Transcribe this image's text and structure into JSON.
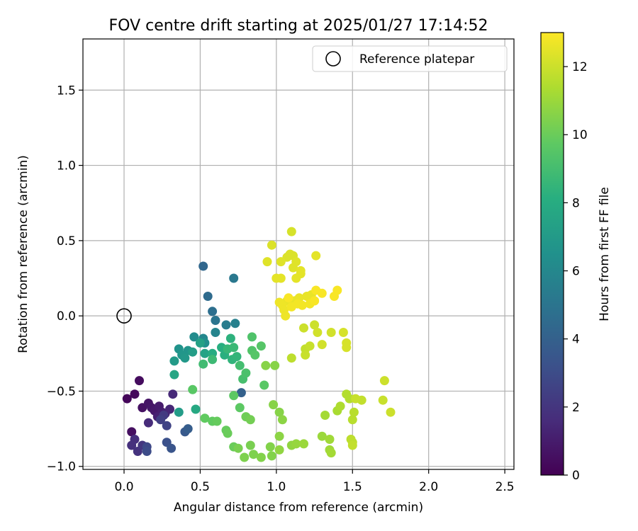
{
  "chart_data": {
    "type": "scatter",
    "title": "FOV centre drift starting at 2025/01/27 17:14:52",
    "xlabel": "Angular distance from reference (arcmin)",
    "ylabel": "Rotation from reference (arcmin)",
    "xlim": [
      -0.27,
      2.56
    ],
    "ylim": [
      -1.02,
      1.84
    ],
    "xticks": [
      0.0,
      0.5,
      1.0,
      1.5,
      2.0,
      2.5
    ],
    "xtick_labels": [
      "0.0",
      "0.5",
      "1.0",
      "1.5",
      "2.0",
      "2.5"
    ],
    "yticks": [
      -1.0,
      -0.5,
      0.0,
      0.5,
      1.0,
      1.5
    ],
    "ytick_labels": [
      "−1.0",
      "−0.5",
      "0.0",
      "0.5",
      "1.0",
      "1.5"
    ],
    "grid": true,
    "legend": {
      "position": "top-right",
      "entries": [
        "Reference platepar"
      ]
    },
    "reference_point": {
      "label": "Reference platepar",
      "x": 0.0,
      "y": 0.0,
      "marker": "open-circle"
    },
    "colorbar": {
      "label": "Hours from first FF file",
      "range": [
        0,
        13
      ],
      "ticks": [
        0,
        2,
        4,
        6,
        8,
        10,
        12
      ],
      "tick_labels": [
        "0",
        "2",
        "4",
        "6",
        "8",
        "10",
        "12"
      ],
      "colormap": "viridis"
    },
    "series": [
      {
        "color_by": "hours",
        "points": [
          [
            0.02,
            -0.55,
            0.2
          ],
          [
            0.07,
            -0.52,
            0.3
          ],
          [
            0.1,
            -0.43,
            0.4
          ],
          [
            0.05,
            -0.77,
            0.5
          ],
          [
            0.12,
            -0.61,
            0.6
          ],
          [
            0.16,
            -0.58,
            0.7
          ],
          [
            0.18,
            -0.61,
            0.8
          ],
          [
            0.2,
            -0.63,
            0.9
          ],
          [
            0.23,
            -0.6,
            1.0
          ],
          [
            0.25,
            -0.64,
            1.1
          ],
          [
            0.22,
            -0.67,
            1.2
          ],
          [
            0.27,
            -0.65,
            1.3
          ],
          [
            0.3,
            -0.62,
            1.4
          ],
          [
            0.32,
            -0.52,
            1.5
          ],
          [
            0.16,
            -0.71,
            1.6
          ],
          [
            0.07,
            -0.82,
            1.7
          ],
          [
            0.05,
            -0.86,
            1.8
          ],
          [
            0.09,
            -0.9,
            1.9
          ],
          [
            0.12,
            -0.86,
            2.0
          ],
          [
            0.26,
            -0.66,
            2.2
          ],
          [
            0.24,
            -0.69,
            2.4
          ],
          [
            0.28,
            -0.73,
            2.6
          ],
          [
            0.15,
            -0.87,
            2.8
          ],
          [
            0.15,
            -0.9,
            3.0
          ],
          [
            0.28,
            -0.84,
            3.2
          ],
          [
            0.31,
            -0.88,
            3.4
          ],
          [
            0.4,
            -0.77,
            3.6
          ],
          [
            0.42,
            -0.75,
            3.8
          ],
          [
            0.77,
            -0.51,
            4.0
          ],
          [
            0.52,
            0.33,
            4.3
          ],
          [
            0.55,
            0.13,
            4.5
          ],
          [
            0.58,
            0.03,
            4.7
          ],
          [
            0.6,
            -0.03,
            5.0
          ],
          [
            0.72,
            0.25,
            5.2
          ],
          [
            0.67,
            -0.06,
            5.4
          ],
          [
            0.73,
            -0.05,
            5.6
          ],
          [
            0.6,
            -0.11,
            5.8
          ],
          [
            0.52,
            -0.15,
            6.0
          ],
          [
            0.46,
            -0.14,
            6.2
          ],
          [
            0.53,
            -0.18,
            6.4
          ],
          [
            0.36,
            -0.22,
            6.6
          ],
          [
            0.42,
            -0.23,
            6.7
          ],
          [
            0.38,
            -0.26,
            6.8
          ],
          [
            0.4,
            -0.28,
            6.9
          ],
          [
            0.33,
            -0.3,
            7.0
          ],
          [
            0.36,
            -0.64,
            7.1
          ],
          [
            0.45,
            -0.24,
            7.2
          ],
          [
            0.5,
            -0.18,
            7.4
          ],
          [
            0.53,
            -0.25,
            7.5
          ],
          [
            0.33,
            -0.39,
            7.6
          ],
          [
            0.47,
            -0.62,
            7.8
          ],
          [
            0.58,
            -0.25,
            8.0
          ],
          [
            0.64,
            -0.21,
            8.1
          ],
          [
            0.66,
            -0.26,
            8.2
          ],
          [
            0.7,
            -0.15,
            8.3
          ],
          [
            0.71,
            -0.29,
            8.4
          ],
          [
            0.74,
            -0.27,
            8.5
          ],
          [
            0.68,
            -0.22,
            8.6
          ],
          [
            0.72,
            -0.21,
            8.7
          ],
          [
            0.58,
            -0.29,
            8.8
          ],
          [
            0.52,
            -0.32,
            8.9
          ],
          [
            0.76,
            -0.33,
            9.0
          ],
          [
            0.78,
            -0.42,
            9.1
          ],
          [
            0.8,
            -0.38,
            9.2
          ],
          [
            0.84,
            -0.14,
            9.3
          ],
          [
            0.84,
            -0.23,
            9.4
          ],
          [
            0.86,
            -0.26,
            9.5
          ],
          [
            0.9,
            -0.2,
            9.5
          ],
          [
            0.92,
            -0.46,
            9.6
          ],
          [
            0.45,
            -0.49,
            9.6
          ],
          [
            0.72,
            -0.53,
            9.7
          ],
          [
            0.76,
            -0.61,
            9.7
          ],
          [
            0.53,
            -0.68,
            9.8
          ],
          [
            0.58,
            -0.7,
            9.8
          ],
          [
            0.61,
            -0.7,
            9.9
          ],
          [
            0.67,
            -0.76,
            9.9
          ],
          [
            0.68,
            -0.78,
            10.0
          ],
          [
            0.72,
            -0.87,
            10.0
          ],
          [
            0.8,
            -0.67,
            10.1
          ],
          [
            0.83,
            -0.69,
            10.2
          ],
          [
            0.83,
            -0.86,
            10.3
          ],
          [
            0.75,
            -0.88,
            10.3
          ],
          [
            0.79,
            -0.94,
            10.4
          ],
          [
            0.85,
            -0.92,
            10.4
          ],
          [
            0.9,
            -0.94,
            10.5
          ],
          [
            0.96,
            -0.87,
            10.5
          ],
          [
            0.98,
            -0.59,
            10.6
          ],
          [
            1.02,
            -0.64,
            10.6
          ],
          [
            1.04,
            -0.69,
            10.7
          ],
          [
            1.02,
            -0.8,
            10.7
          ],
          [
            1.02,
            -0.89,
            10.8
          ],
          [
            1.1,
            -0.86,
            10.8
          ],
          [
            1.13,
            -0.85,
            10.9
          ],
          [
            1.18,
            -0.85,
            11.0
          ],
          [
            0.97,
            -0.93,
            10.5
          ],
          [
            0.93,
            -0.33,
            10.6
          ],
          [
            0.99,
            -0.33,
            10.6
          ],
          [
            1.3,
            -0.8,
            11.0
          ],
          [
            1.35,
            -0.82,
            11.1
          ],
          [
            1.35,
            -0.89,
            11.1
          ],
          [
            1.36,
            -0.91,
            11.2
          ],
          [
            1.32,
            -0.66,
            11.2
          ],
          [
            1.4,
            -0.63,
            11.3
          ],
          [
            1.42,
            -0.6,
            11.4
          ],
          [
            1.48,
            -0.55,
            11.5
          ],
          [
            1.46,
            -0.52,
            11.5
          ],
          [
            1.5,
            -0.69,
            11.6
          ],
          [
            1.51,
            -0.64,
            11.6
          ],
          [
            1.49,
            -0.82,
            11.7
          ],
          [
            1.5,
            -0.84,
            11.7
          ],
          [
            1.5,
            -0.86,
            11.8
          ],
          [
            1.56,
            -0.56,
            11.8
          ],
          [
            1.52,
            -0.55,
            11.9
          ],
          [
            1.7,
            -0.56,
            11.9
          ],
          [
            1.71,
            -0.43,
            12.0
          ],
          [
            1.75,
            -0.64,
            12.0
          ],
          [
            1.1,
            -0.28,
            11.7
          ],
          [
            1.19,
            -0.22,
            11.8
          ],
          [
            1.22,
            -0.2,
            11.9
          ],
          [
            1.19,
            -0.26,
            11.9
          ],
          [
            1.18,
            -0.08,
            12.0
          ],
          [
            1.25,
            -0.06,
            12.0
          ],
          [
            1.27,
            -0.11,
            12.1
          ],
          [
            1.3,
            -0.19,
            12.1
          ],
          [
            1.36,
            -0.11,
            12.1
          ],
          [
            1.44,
            -0.11,
            12.2
          ],
          [
            1.46,
            -0.18,
            12.2
          ],
          [
            1.46,
            -0.21,
            12.2
          ],
          [
            1.1,
            0.56,
            12.2
          ],
          [
            0.97,
            0.47,
            12.3
          ],
          [
            1.07,
            0.39,
            12.3
          ],
          [
            1.09,
            0.41,
            12.3
          ],
          [
            1.11,
            0.4,
            12.3
          ],
          [
            1.13,
            0.36,
            12.4
          ],
          [
            1.03,
            0.36,
            12.4
          ],
          [
            0.94,
            0.36,
            12.4
          ],
          [
            1.11,
            0.32,
            12.4
          ],
          [
            1.16,
            0.3,
            12.5
          ],
          [
            1.16,
            0.28,
            12.5
          ],
          [
            1.0,
            0.25,
            12.5
          ],
          [
            1.03,
            0.25,
            12.5
          ],
          [
            1.13,
            0.25,
            12.5
          ],
          [
            1.26,
            0.4,
            12.5
          ],
          [
            1.15,
            0.12,
            12.6
          ],
          [
            1.07,
            0.1,
            12.6
          ],
          [
            1.12,
            0.1,
            12.6
          ],
          [
            1.2,
            0.13,
            12.6
          ],
          [
            1.23,
            0.14,
            12.6
          ],
          [
            1.04,
            0.07,
            12.7
          ],
          [
            1.02,
            0.09,
            12.7
          ],
          [
            1.05,
            0.04,
            12.7
          ],
          [
            1.06,
            0.0,
            12.7
          ],
          [
            1.1,
            0.06,
            12.8
          ],
          [
            1.14,
            0.08,
            12.8
          ],
          [
            1.17,
            0.07,
            12.8
          ],
          [
            1.22,
            0.08,
            12.8
          ],
          [
            1.25,
            0.1,
            12.8
          ],
          [
            1.08,
            0.12,
            12.9
          ],
          [
            1.3,
            0.15,
            12.9
          ],
          [
            1.38,
            0.13,
            12.9
          ],
          [
            1.4,
            0.17,
            12.9
          ],
          [
            1.26,
            0.17,
            12.9
          ],
          [
            1.25,
            0.1,
            12.9
          ]
        ]
      }
    ]
  }
}
